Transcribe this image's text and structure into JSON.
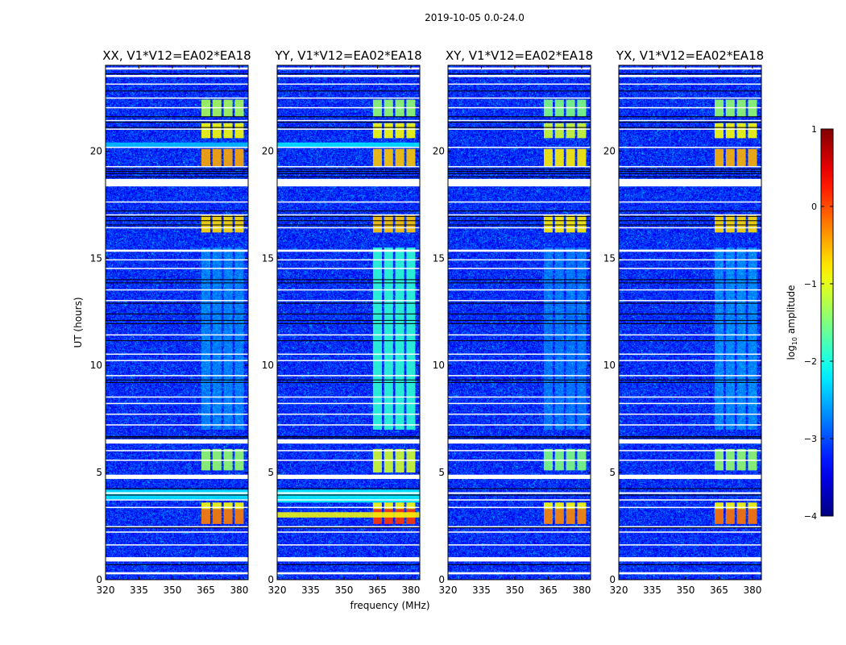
{
  "chart_data": {
    "type": "heatmap",
    "suptitle": "2019-10-05 0.0-24.0",
    "xlabel": "frequency (MHz)",
    "ylabel": "UT (hours)",
    "xlim": [
      320,
      384
    ],
    "ylim": [
      0,
      24
    ],
    "xticks": [
      "320",
      "335",
      "350",
      "365",
      "380"
    ],
    "xtick_values": [
      320,
      335,
      350,
      365,
      380
    ],
    "yticks": [
      "0",
      "5",
      "10",
      "15",
      "20"
    ],
    "ytick_values": [
      0,
      5,
      10,
      15,
      20
    ],
    "colorbar": {
      "label": "log10 amplitude",
      "label_main": "log",
      "label_sub": "10",
      "label_rest": " amplitude",
      "range": [
        -4,
        1
      ],
      "ticks": [
        "−4",
        "−3",
        "−2",
        "−1",
        "0",
        "1"
      ],
      "tick_values": [
        -4,
        -3,
        -2,
        -1,
        0,
        1
      ],
      "colormap": "jet"
    },
    "background_level": -3.2,
    "rfi_subbands_mhz": [
      [
        363,
        367
      ],
      [
        368,
        372
      ],
      [
        373,
        377
      ],
      [
        378,
        382
      ]
    ],
    "flagged_white_hours": [
      [
        0.25,
        0.35
      ],
      [
        0.85,
        1.05
      ],
      [
        1.6,
        1.65
      ],
      [
        2.2,
        2.25
      ],
      [
        2.45,
        2.5
      ],
      [
        3.35,
        3.4
      ],
      [
        3.7,
        3.75
      ],
      [
        4.0,
        4.08
      ],
      [
        4.7,
        4.9
      ],
      [
        5.55,
        5.6
      ],
      [
        6.0,
        6.05
      ],
      [
        6.35,
        6.55
      ],
      [
        7.2,
        7.25
      ],
      [
        7.7,
        7.75
      ],
      [
        8.2,
        8.25
      ],
      [
        8.5,
        8.55
      ],
      [
        9.5,
        9.55
      ],
      [
        10.2,
        10.25
      ],
      [
        10.5,
        10.55
      ],
      [
        11.4,
        11.45
      ],
      [
        13.0,
        13.05
      ],
      [
        13.5,
        13.55
      ],
      [
        14.5,
        14.55
      ],
      [
        14.9,
        14.95
      ],
      [
        15.3,
        15.4
      ],
      [
        16.4,
        16.45
      ],
      [
        17.0,
        17.05
      ],
      [
        17.6,
        17.65
      ],
      [
        18.35,
        18.7
      ],
      [
        19.25,
        19.3
      ],
      [
        20.15,
        20.2
      ],
      [
        21.0,
        21.05
      ],
      [
        21.4,
        21.45
      ],
      [
        22.0,
        22.05
      ],
      [
        22.45,
        22.5
      ],
      [
        23.1,
        23.15
      ],
      [
        23.45,
        23.55
      ],
      [
        23.8,
        23.9
      ]
    ],
    "black_line_hours": [
      0.7,
      2.42,
      3.95,
      4.25,
      6.62,
      6.68,
      9.2,
      9.32,
      11.15,
      11.95,
      12.1,
      12.4,
      12.9,
      13.85,
      14.0,
      16.55,
      16.75,
      16.95,
      17.2,
      18.8,
      18.95,
      19.05,
      19.15,
      21.1,
      21.35,
      21.6,
      22.8,
      23.6
    ],
    "panels": [
      {
        "title": "XX, V1*V12=EA02*EA18",
        "features": [
          {
            "t": [
              19.3,
              20.1
            ],
            "level": -0.45,
            "kind": "blocks"
          },
          {
            "t": [
              20.6,
              21.3
            ],
            "level": -0.9,
            "kind": "blocks"
          },
          {
            "t": [
              21.6,
              22.4
            ],
            "level": -1.3,
            "kind": "blocks"
          },
          {
            "t": [
              16.2,
              17.0
            ],
            "level": -0.7,
            "kind": "blocks"
          },
          {
            "t": [
              7.0,
              15.5
            ],
            "level": -2.3,
            "kind": "blocks"
          },
          {
            "t": [
              5.1,
              6.1
            ],
            "level": -1.4,
            "kind": "blocks"
          },
          {
            "t": [
              2.6,
              3.3
            ],
            "level": -0.25,
            "kind": "blocks"
          },
          {
            "t": [
              3.3,
              3.6
            ],
            "level": -0.9,
            "kind": "blocks"
          },
          {
            "t": [
              3.75,
              4.2
            ],
            "level": -2.2,
            "kind": "band"
          },
          {
            "t": [
              20.2,
              20.4
            ],
            "level": -2.4,
            "kind": "band"
          }
        ]
      },
      {
        "title": "YY, V1*V12=EA02*EA18",
        "features": [
          {
            "t": [
              19.3,
              20.1
            ],
            "level": -0.6,
            "kind": "blocks"
          },
          {
            "t": [
              20.6,
              21.3
            ],
            "level": -0.9,
            "kind": "blocks"
          },
          {
            "t": [
              21.6,
              22.4
            ],
            "level": -1.4,
            "kind": "blocks"
          },
          {
            "t": [
              16.2,
              17.0
            ],
            "level": -0.6,
            "kind": "blocks"
          },
          {
            "t": [
              7.0,
              15.5
            ],
            "level": -1.9,
            "kind": "blocks"
          },
          {
            "t": [
              5.0,
              6.1
            ],
            "level": -1.1,
            "kind": "blocks"
          },
          {
            "t": [
              2.6,
              3.3
            ],
            "level": 0.1,
            "kind": "blocks"
          },
          {
            "t": [
              3.3,
              3.6
            ],
            "level": -0.9,
            "kind": "blocks"
          },
          {
            "t": [
              2.9,
              3.15
            ],
            "level": -0.9,
            "kind": "band"
          },
          {
            "t": [
              3.6,
              4.2
            ],
            "level": -2.1,
            "kind": "band"
          },
          {
            "t": [
              20.2,
              20.4
            ],
            "level": -2.2,
            "kind": "band"
          }
        ]
      },
      {
        "title": "XY, V1*V12=EA02*EA18",
        "features": [
          {
            "t": [
              19.3,
              20.1
            ],
            "level": -0.8,
            "kind": "blocks"
          },
          {
            "t": [
              20.6,
              21.3
            ],
            "level": -1.1,
            "kind": "blocks"
          },
          {
            "t": [
              21.6,
              22.4
            ],
            "level": -1.5,
            "kind": "blocks"
          },
          {
            "t": [
              16.2,
              17.0
            ],
            "level": -0.8,
            "kind": "blocks"
          },
          {
            "t": [
              7.0,
              15.5
            ],
            "level": -2.4,
            "kind": "blocks"
          },
          {
            "t": [
              5.1,
              6.1
            ],
            "level": -1.5,
            "kind": "blocks"
          },
          {
            "t": [
              2.6,
              3.3
            ],
            "level": -0.3,
            "kind": "blocks"
          },
          {
            "t": [
              3.3,
              3.6
            ],
            "level": -0.9,
            "kind": "blocks"
          }
        ]
      },
      {
        "title": "YX, V1*V12=EA02*EA18",
        "features": [
          {
            "t": [
              19.3,
              20.1
            ],
            "level": -0.5,
            "kind": "blocks"
          },
          {
            "t": [
              20.6,
              21.3
            ],
            "level": -0.9,
            "kind": "blocks"
          },
          {
            "t": [
              21.6,
              22.4
            ],
            "level": -1.4,
            "kind": "blocks"
          },
          {
            "t": [
              16.2,
              17.0
            ],
            "level": -0.7,
            "kind": "blocks"
          },
          {
            "t": [
              7.0,
              15.5
            ],
            "level": -2.2,
            "kind": "blocks"
          },
          {
            "t": [
              5.1,
              6.1
            ],
            "level": -1.4,
            "kind": "blocks"
          },
          {
            "t": [
              2.6,
              3.3
            ],
            "level": -0.2,
            "kind": "blocks"
          },
          {
            "t": [
              3.3,
              3.6
            ],
            "level": -0.9,
            "kind": "blocks"
          }
        ]
      }
    ]
  }
}
